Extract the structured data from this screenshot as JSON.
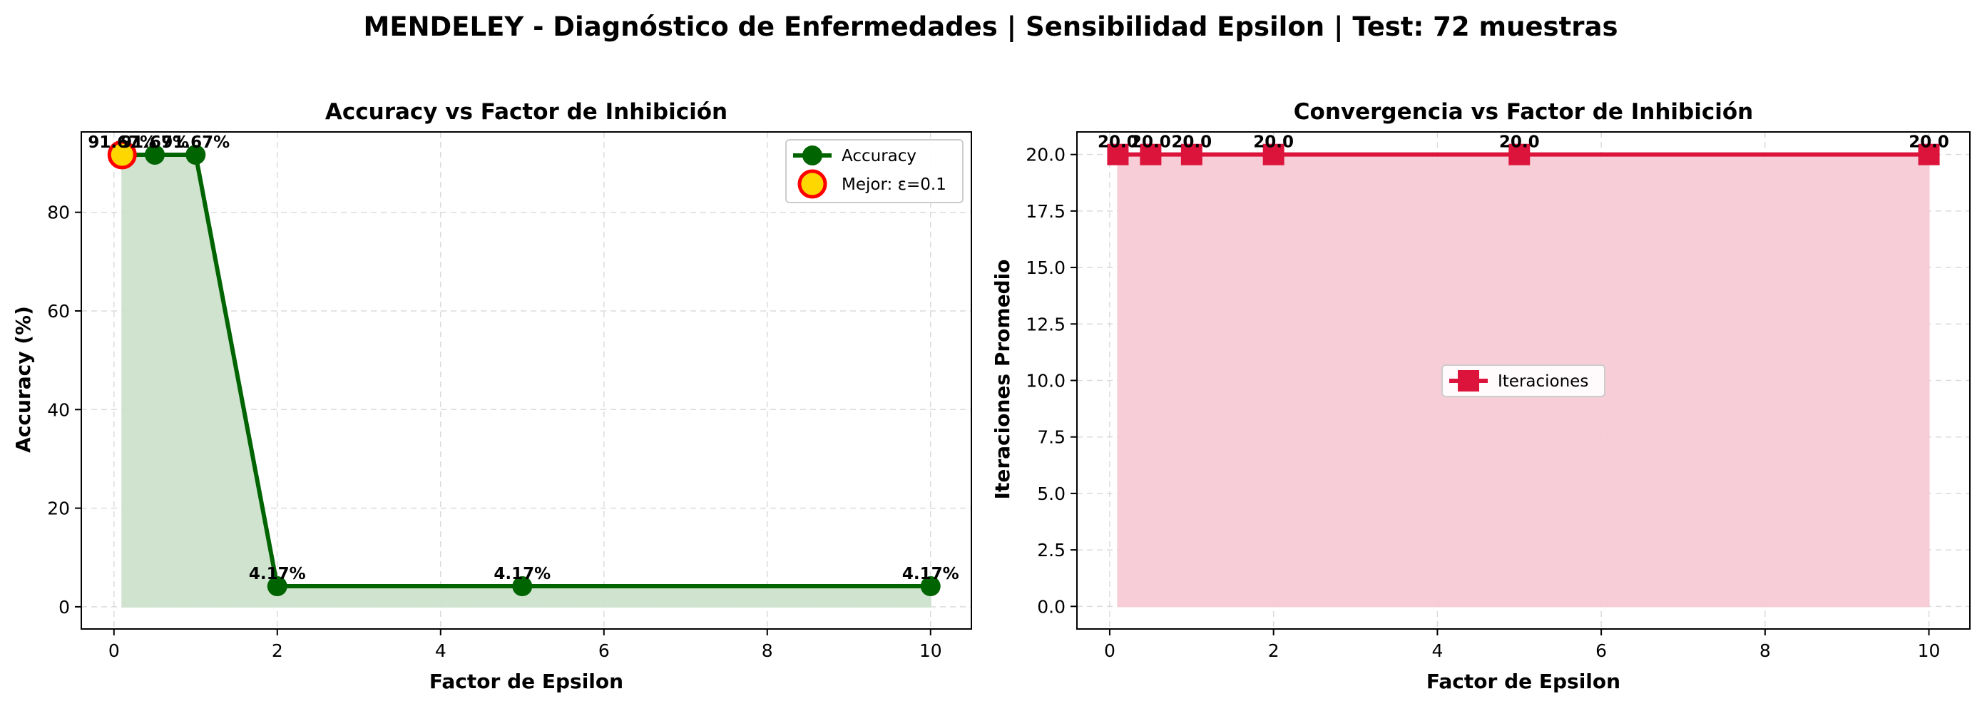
{
  "figure": {
    "suptitle": "MENDELEY - Diagnóstico de Enfermedades | Sensibilidad Epsilon | Test: 72 muestras"
  },
  "chart_data": [
    {
      "type": "line",
      "title": "Accuracy vs Factor de Inhibición",
      "xlabel": "Factor de Epsilon",
      "ylabel": "Accuracy (%)",
      "xlim": [
        -0.4,
        10.5
      ],
      "ylim": [
        -4.5,
        96.3
      ],
      "xticks": [
        0,
        2,
        4,
        6,
        8,
        10
      ],
      "yticks": [
        0,
        20,
        40,
        60,
        80
      ],
      "grid": true,
      "fill_under": true,
      "legend_position": "upper right",
      "colors": {
        "line": "#006400",
        "fill": "#cde2cd",
        "best_face": "#FFD700",
        "best_edge": "#ff0000"
      },
      "series": [
        {
          "name": "Accuracy",
          "marker": "circle",
          "x": [
            0.1,
            0.5,
            1,
            2,
            5,
            10
          ],
          "y": [
            91.67,
            91.67,
            91.67,
            4.17,
            4.17,
            4.17
          ],
          "labels": [
            "91.67%",
            "91.67%",
            "91.67%",
            "4.17%",
            "4.17%",
            "4.17%"
          ]
        }
      ],
      "highlight": {
        "name": "Mejor: ε=0.1",
        "x": 0.1,
        "y": 91.67
      }
    },
    {
      "type": "line",
      "title": "Convergencia vs Factor de Inhibición",
      "xlabel": "Factor de Epsilon",
      "ylabel": "Iteraciones Promedio",
      "xlim": [
        -0.4,
        10.5
      ],
      "ylim": [
        -1.0,
        21.0
      ],
      "xticks": [
        0,
        2,
        4,
        6,
        8,
        10
      ],
      "yticks": [
        0,
        2.5,
        5,
        7.5,
        10,
        12.5,
        15,
        17.5,
        20
      ],
      "ytick_labels": [
        "0.0",
        "2.5",
        "5.0",
        "7.5",
        "10.0",
        "12.5",
        "15.0",
        "17.5",
        "20.0"
      ],
      "grid": true,
      "fill_under": true,
      "legend_position": "center",
      "colors": {
        "line": "#DC143C",
        "fill": "#f7ccd6"
      },
      "series": [
        {
          "name": "Iteraciones",
          "marker": "square",
          "x": [
            0.1,
            0.5,
            1,
            2,
            5,
            10
          ],
          "y": [
            20,
            20,
            20,
            20,
            20,
            20
          ],
          "labels": [
            "20.0",
            "20.0",
            "20.0",
            "20.0",
            "20.0",
            "20.0"
          ]
        }
      ]
    }
  ]
}
